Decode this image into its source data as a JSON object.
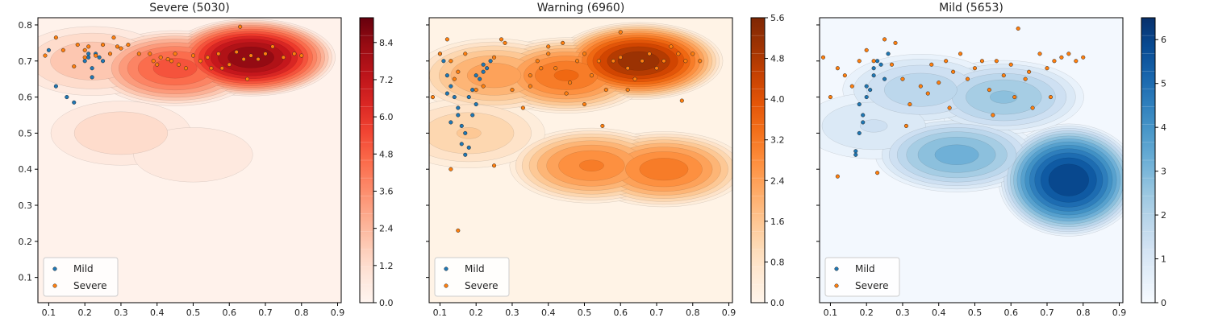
{
  "chart_data": [
    {
      "type": "contour",
      "title": "Severe (5030)",
      "colormap": "Reds",
      "xlim": [
        0.07,
        0.91
      ],
      "ylim": [
        0.03,
        0.82
      ],
      "xticks": [
        "0.1",
        "0.2",
        "0.3",
        "0.4",
        "0.5",
        "0.6",
        "0.7",
        "0.8",
        "0.9"
      ],
      "yticks": [
        "0.1",
        "0.2",
        "0.3",
        "0.4",
        "0.5",
        "0.6",
        "0.7",
        "0.8"
      ],
      "colorbar": {
        "min": 0,
        "max": 9.2,
        "ticks": [
          "0.0",
          "1.2",
          "2.4",
          "3.6",
          "4.8",
          "6.0",
          "7.2",
          "8.4"
        ]
      },
      "density_peaks": [
        {
          "x": 0.66,
          "y": 0.71,
          "level": 9.0
        },
        {
          "x": 0.45,
          "y": 0.68,
          "level": 5.5
        },
        {
          "x": 0.22,
          "y": 0.7,
          "level": 2.5
        },
        {
          "x": 0.3,
          "y": 0.5,
          "level": 1.8
        },
        {
          "x": 0.5,
          "y": 0.44,
          "level": 1.2
        }
      ],
      "legend": {
        "position": "lower-left",
        "entries": [
          "Mild",
          "Severe"
        ]
      },
      "series": [
        {
          "name": "Mild",
          "color": "#1f77b4",
          "x": [
            0.1,
            0.12,
            0.15,
            0.17,
            0.2,
            0.21,
            0.22,
            0.23,
            0.24,
            0.25,
            0.22,
            0.21
          ],
          "y": [
            0.73,
            0.63,
            0.6,
            0.585,
            0.7,
            0.72,
            0.68,
            0.72,
            0.71,
            0.7,
            0.655,
            0.71
          ]
        },
        {
          "name": "Severe",
          "color": "#ff7f0e",
          "x": [
            0.09,
            0.12,
            0.14,
            0.17,
            0.18,
            0.2,
            0.2,
            0.21,
            0.23,
            0.25,
            0.27,
            0.28,
            0.29,
            0.3,
            0.32,
            0.35,
            0.38,
            0.39,
            0.4,
            0.41,
            0.43,
            0.45,
            0.46,
            0.48,
            0.5,
            0.52,
            0.54,
            0.55,
            0.57,
            0.6,
            0.62,
            0.63,
            0.64,
            0.66,
            0.68,
            0.7,
            0.72,
            0.75,
            0.78,
            0.8,
            0.65,
            0.58,
            0.44
          ],
          "y": [
            0.715,
            0.765,
            0.73,
            0.685,
            0.745,
            0.71,
            0.73,
            0.74,
            0.715,
            0.745,
            0.72,
            0.765,
            0.74,
            0.735,
            0.745,
            0.72,
            0.72,
            0.7,
            0.69,
            0.71,
            0.705,
            0.72,
            0.69,
            0.68,
            0.715,
            0.7,
            0.71,
            0.68,
            0.72,
            0.69,
            0.725,
            0.795,
            0.705,
            0.715,
            0.705,
            0.72,
            0.74,
            0.71,
            0.72,
            0.715,
            0.65,
            0.68,
            0.7
          ]
        }
      ]
    },
    {
      "type": "contour",
      "title": "Warning (6960)",
      "colormap": "Oranges",
      "xlim": [
        0.07,
        0.91
      ],
      "ylim": [
        0.03,
        0.82
      ],
      "xticks": [
        "0.1",
        "0.2",
        "0.3",
        "0.4",
        "0.5",
        "0.6",
        "0.7",
        "0.8",
        "0.9"
      ],
      "yticks": [
        "0.1",
        "0.2",
        "0.3",
        "0.4",
        "0.5",
        "0.6",
        "0.7",
        "0.8"
      ],
      "colorbar": {
        "min": 0,
        "max": 5.6,
        "ticks": [
          "0.0",
          "0.8",
          "1.6",
          "2.4",
          "3.2",
          "4.0",
          "4.8",
          "5.6"
        ]
      },
      "density_peaks": [
        {
          "x": 0.65,
          "y": 0.7,
          "level": 5.4
        },
        {
          "x": 0.45,
          "y": 0.66,
          "level": 3.6
        },
        {
          "x": 0.72,
          "y": 0.4,
          "level": 3.4
        },
        {
          "x": 0.52,
          "y": 0.41,
          "level": 3.2
        },
        {
          "x": 0.25,
          "y": 0.66,
          "level": 2.6
        },
        {
          "x": 0.18,
          "y": 0.5,
          "level": 1.6
        }
      ],
      "legend": {
        "position": "lower-left",
        "entries": [
          "Mild",
          "Severe"
        ]
      },
      "series": [
        {
          "name": "Mild",
          "color": "#1f77b4",
          "x": [
            0.1,
            0.11,
            0.12,
            0.13,
            0.14,
            0.15,
            0.16,
            0.17,
            0.18,
            0.19,
            0.2,
            0.21,
            0.22,
            0.23,
            0.24,
            0.17,
            0.16,
            0.18,
            0.15,
            0.19,
            0.2,
            0.22,
            0.13,
            0.12
          ],
          "y": [
            0.72,
            0.7,
            0.66,
            0.63,
            0.6,
            0.55,
            0.52,
            0.5,
            0.46,
            0.55,
            0.58,
            0.65,
            0.67,
            0.68,
            0.7,
            0.44,
            0.47,
            0.6,
            0.57,
            0.62,
            0.66,
            0.69,
            0.53,
            0.61
          ]
        },
        {
          "name": "Severe",
          "color": "#ff7f0e",
          "x": [
            0.08,
            0.1,
            0.12,
            0.13,
            0.14,
            0.15,
            0.17,
            0.2,
            0.22,
            0.25,
            0.27,
            0.28,
            0.3,
            0.33,
            0.35,
            0.37,
            0.38,
            0.4,
            0.42,
            0.44,
            0.46,
            0.48,
            0.5,
            0.52,
            0.54,
            0.56,
            0.58,
            0.6,
            0.62,
            0.64,
            0.66,
            0.68,
            0.7,
            0.72,
            0.74,
            0.76,
            0.78,
            0.8,
            0.82,
            0.6,
            0.55,
            0.5,
            0.45,
            0.4,
            0.35,
            0.25,
            0.15,
            0.13,
            0.62,
            0.77
          ],
          "y": [
            0.6,
            0.72,
            0.76,
            0.7,
            0.65,
            0.67,
            0.72,
            0.62,
            0.63,
            0.71,
            0.76,
            0.75,
            0.62,
            0.57,
            0.66,
            0.7,
            0.68,
            0.72,
            0.68,
            0.75,
            0.64,
            0.7,
            0.72,
            0.66,
            0.7,
            0.62,
            0.7,
            0.71,
            0.68,
            0.65,
            0.7,
            0.72,
            0.68,
            0.7,
            0.74,
            0.72,
            0.7,
            0.72,
            0.7,
            0.78,
            0.52,
            0.58,
            0.61,
            0.74,
            0.63,
            0.41,
            0.23,
            0.4,
            0.62,
            0.59
          ]
        }
      ]
    },
    {
      "type": "contour",
      "title": "Mild (5653)",
      "colormap": "Blues",
      "xlim": [
        0.07,
        0.91
      ],
      "ylim": [
        0.03,
        0.82
      ],
      "xticks": [
        "0.1",
        "0.2",
        "0.3",
        "0.4",
        "0.5",
        "0.6",
        "0.7",
        "0.8",
        "0.9"
      ],
      "yticks": [
        "0.1",
        "0.2",
        "0.3",
        "0.4",
        "0.5",
        "0.6",
        "0.7",
        "0.8"
      ],
      "colorbar": {
        "min": 0,
        "max": 6.5,
        "ticks": [
          "0",
          "1",
          "2",
          "3",
          "4",
          "5",
          "6"
        ]
      },
      "density_peaks": [
        {
          "x": 0.76,
          "y": 0.37,
          "level": 6.4
        },
        {
          "x": 0.45,
          "y": 0.44,
          "level": 3.4
        },
        {
          "x": 0.58,
          "y": 0.6,
          "level": 2.8
        },
        {
          "x": 0.35,
          "y": 0.62,
          "level": 2.2
        },
        {
          "x": 0.22,
          "y": 0.52,
          "level": 1.4
        }
      ],
      "legend": {
        "position": "lower-left",
        "entries": [
          "Mild",
          "Severe"
        ]
      },
      "series": [
        {
          "name": "Mild",
          "color": "#1f77b4",
          "x": [
            0.17,
            0.18,
            0.19,
            0.2,
            0.21,
            0.22,
            0.23,
            0.24,
            0.25,
            0.26,
            0.18,
            0.17,
            0.2,
            0.22,
            0.19
          ],
          "y": [
            0.45,
            0.5,
            0.55,
            0.6,
            0.62,
            0.68,
            0.7,
            0.69,
            0.65,
            0.72,
            0.58,
            0.44,
            0.63,
            0.66,
            0.53
          ]
        },
        {
          "name": "Severe",
          "color": "#ff7f0e",
          "x": [
            0.08,
            0.1,
            0.12,
            0.14,
            0.16,
            0.18,
            0.2,
            0.22,
            0.25,
            0.27,
            0.28,
            0.3,
            0.32,
            0.35,
            0.38,
            0.4,
            0.42,
            0.44,
            0.46,
            0.48,
            0.5,
            0.52,
            0.54,
            0.56,
            0.58,
            0.6,
            0.62,
            0.64,
            0.66,
            0.68,
            0.7,
            0.72,
            0.74,
            0.76,
            0.78,
            0.8,
            0.61,
            0.43,
            0.37,
            0.55,
            0.65,
            0.71,
            0.12,
            0.23,
            0.31
          ],
          "y": [
            0.71,
            0.6,
            0.68,
            0.66,
            0.63,
            0.7,
            0.73,
            0.7,
            0.76,
            0.69,
            0.75,
            0.65,
            0.58,
            0.63,
            0.69,
            0.64,
            0.7,
            0.67,
            0.72,
            0.65,
            0.68,
            0.7,
            0.62,
            0.7,
            0.66,
            0.69,
            0.79,
            0.65,
            0.57,
            0.72,
            0.68,
            0.7,
            0.71,
            0.72,
            0.7,
            0.71,
            0.6,
            0.57,
            0.61,
            0.55,
            0.67,
            0.6,
            0.38,
            0.39,
            0.52
          ]
        }
      ]
    }
  ]
}
